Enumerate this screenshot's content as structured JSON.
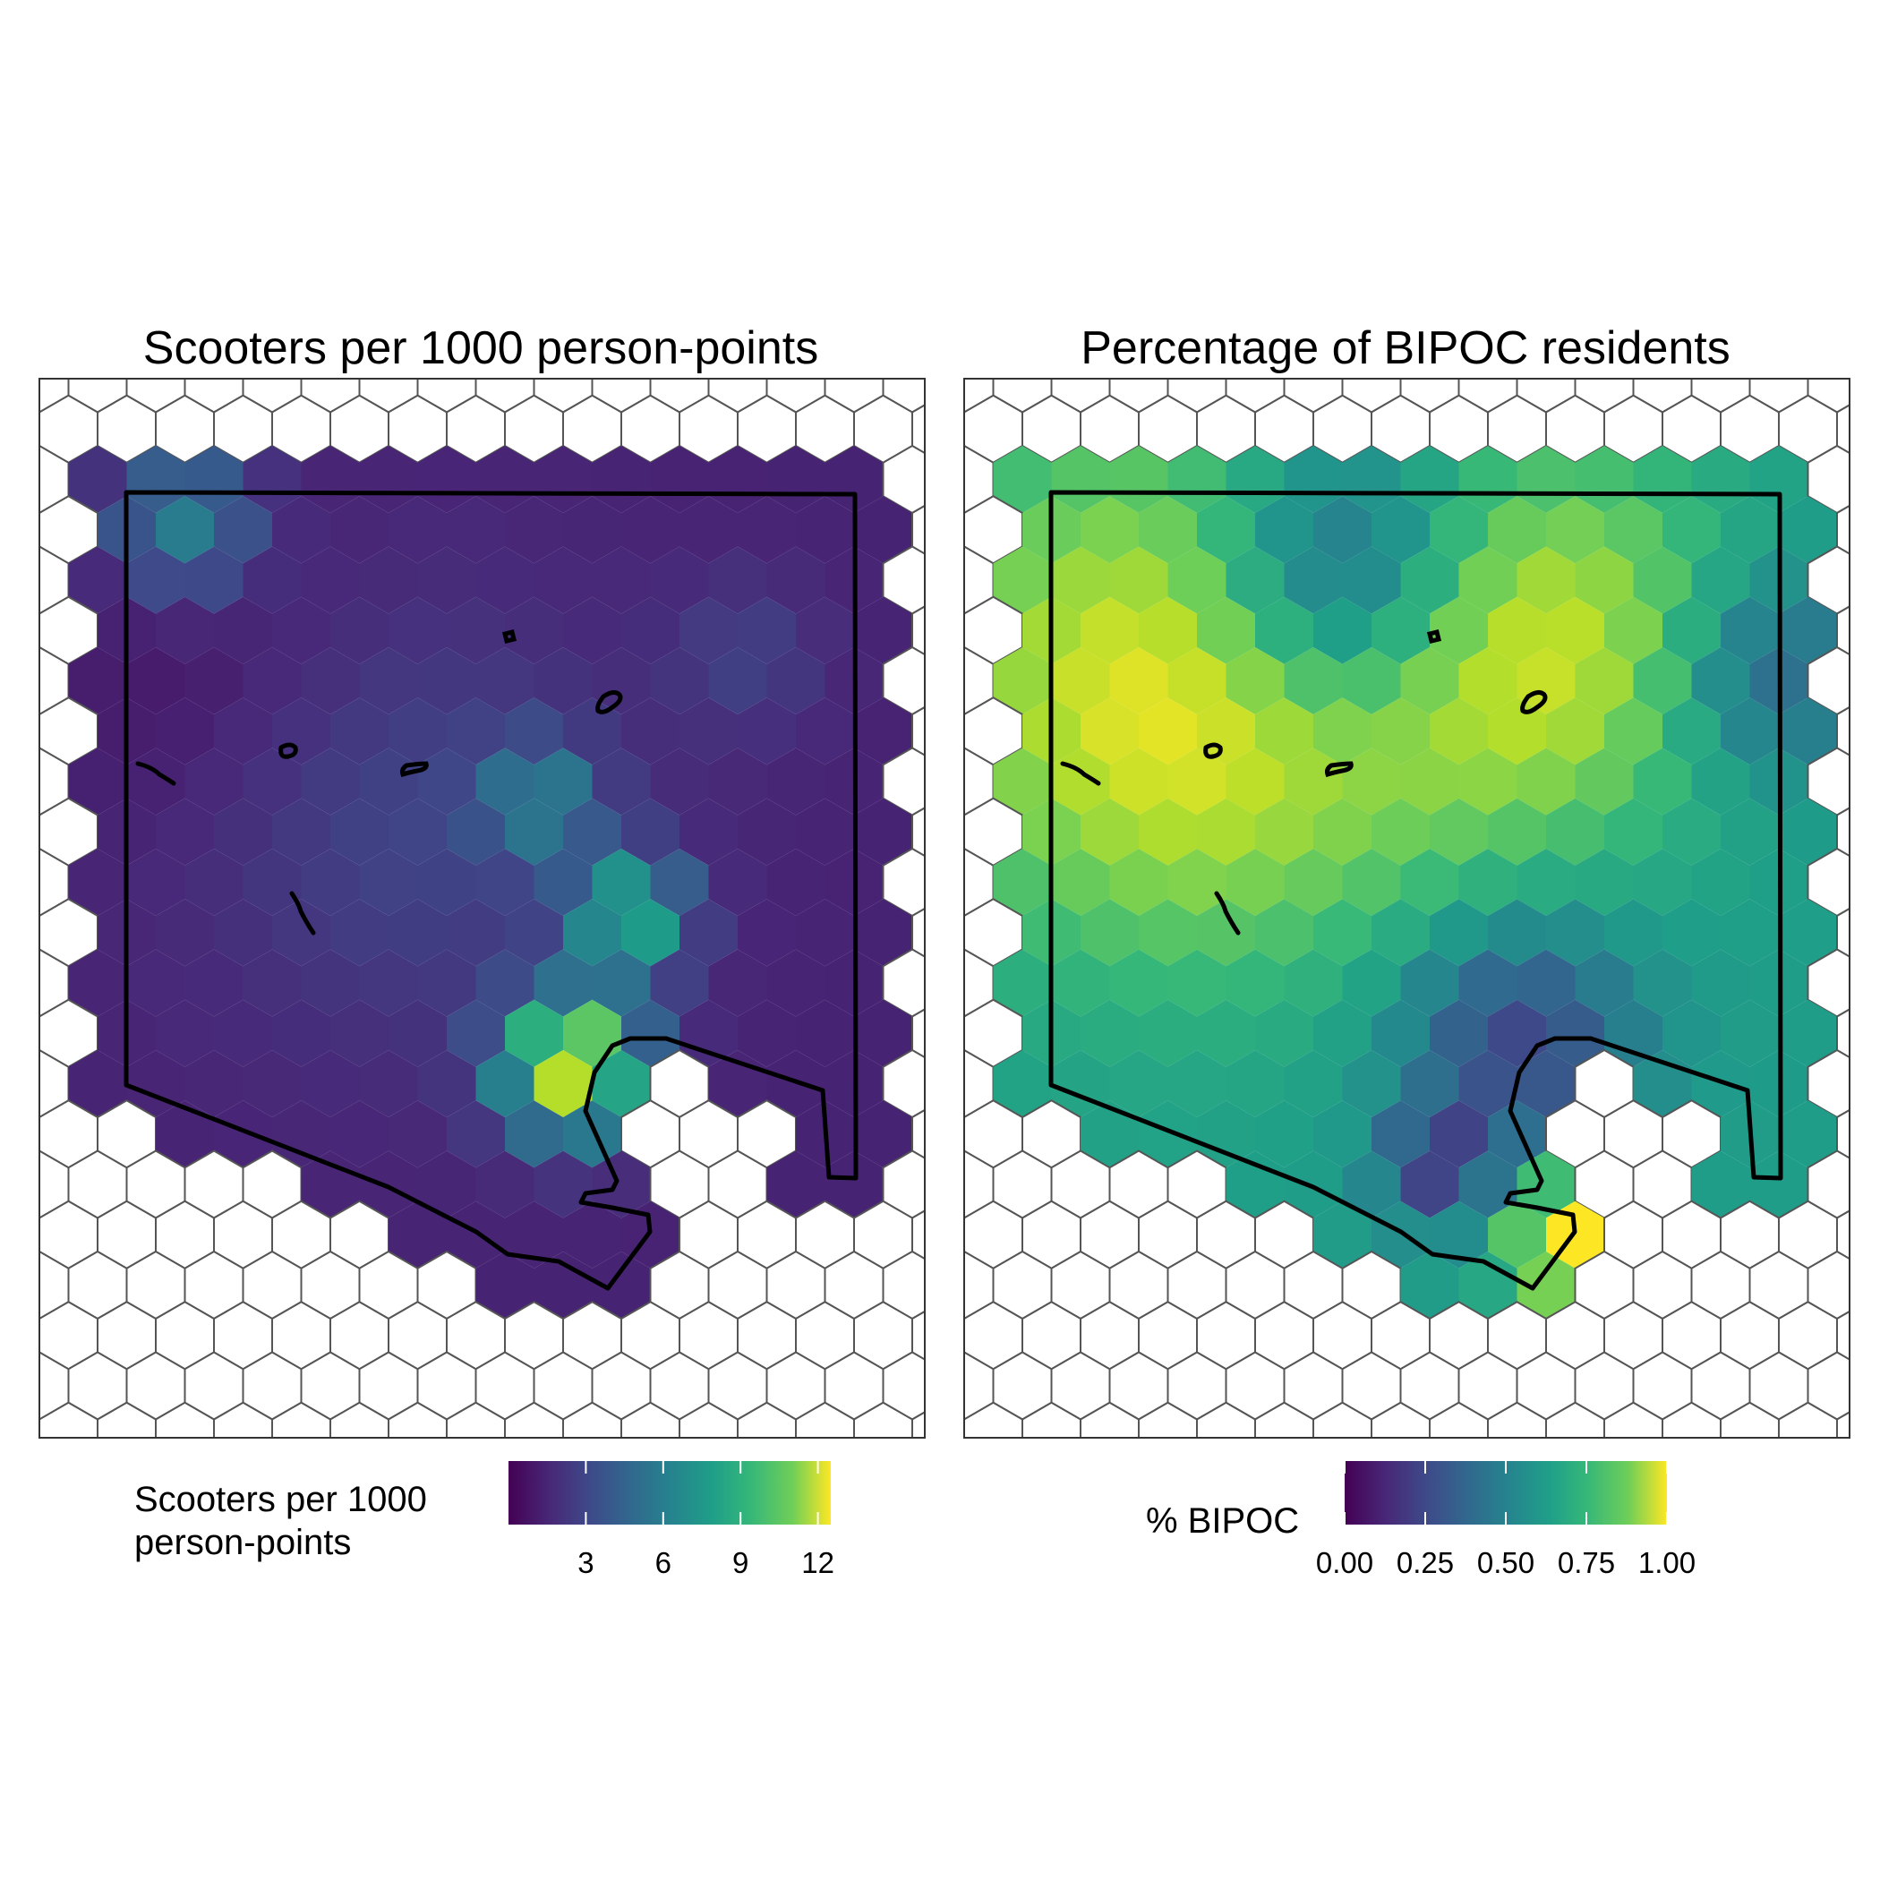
{
  "panels": [
    {
      "title": "Scooters per 1000 person-points",
      "legend": {
        "title_lines": [
          "Scooters per 1000",
          "person-points"
        ],
        "ticks": [
          "3",
          "6",
          "9",
          "12"
        ],
        "tick_values": [
          3,
          6,
          9,
          12
        ],
        "range": [
          0,
          12.5
        ]
      }
    },
    {
      "title": "Percentage of BIPOC residents",
      "legend": {
        "title_lines": [
          "% BIPOC"
        ],
        "ticks": [
          "0.00",
          "0.25",
          "0.50",
          "0.75",
          "1.00"
        ],
        "tick_values": [
          0,
          0.25,
          0.5,
          0.75,
          1.0
        ],
        "range": [
          0,
          1.0
        ]
      }
    }
  ],
  "colors": {
    "palette": "viridis",
    "hex_outline": "#555555",
    "boundary": "#000000"
  }
}
